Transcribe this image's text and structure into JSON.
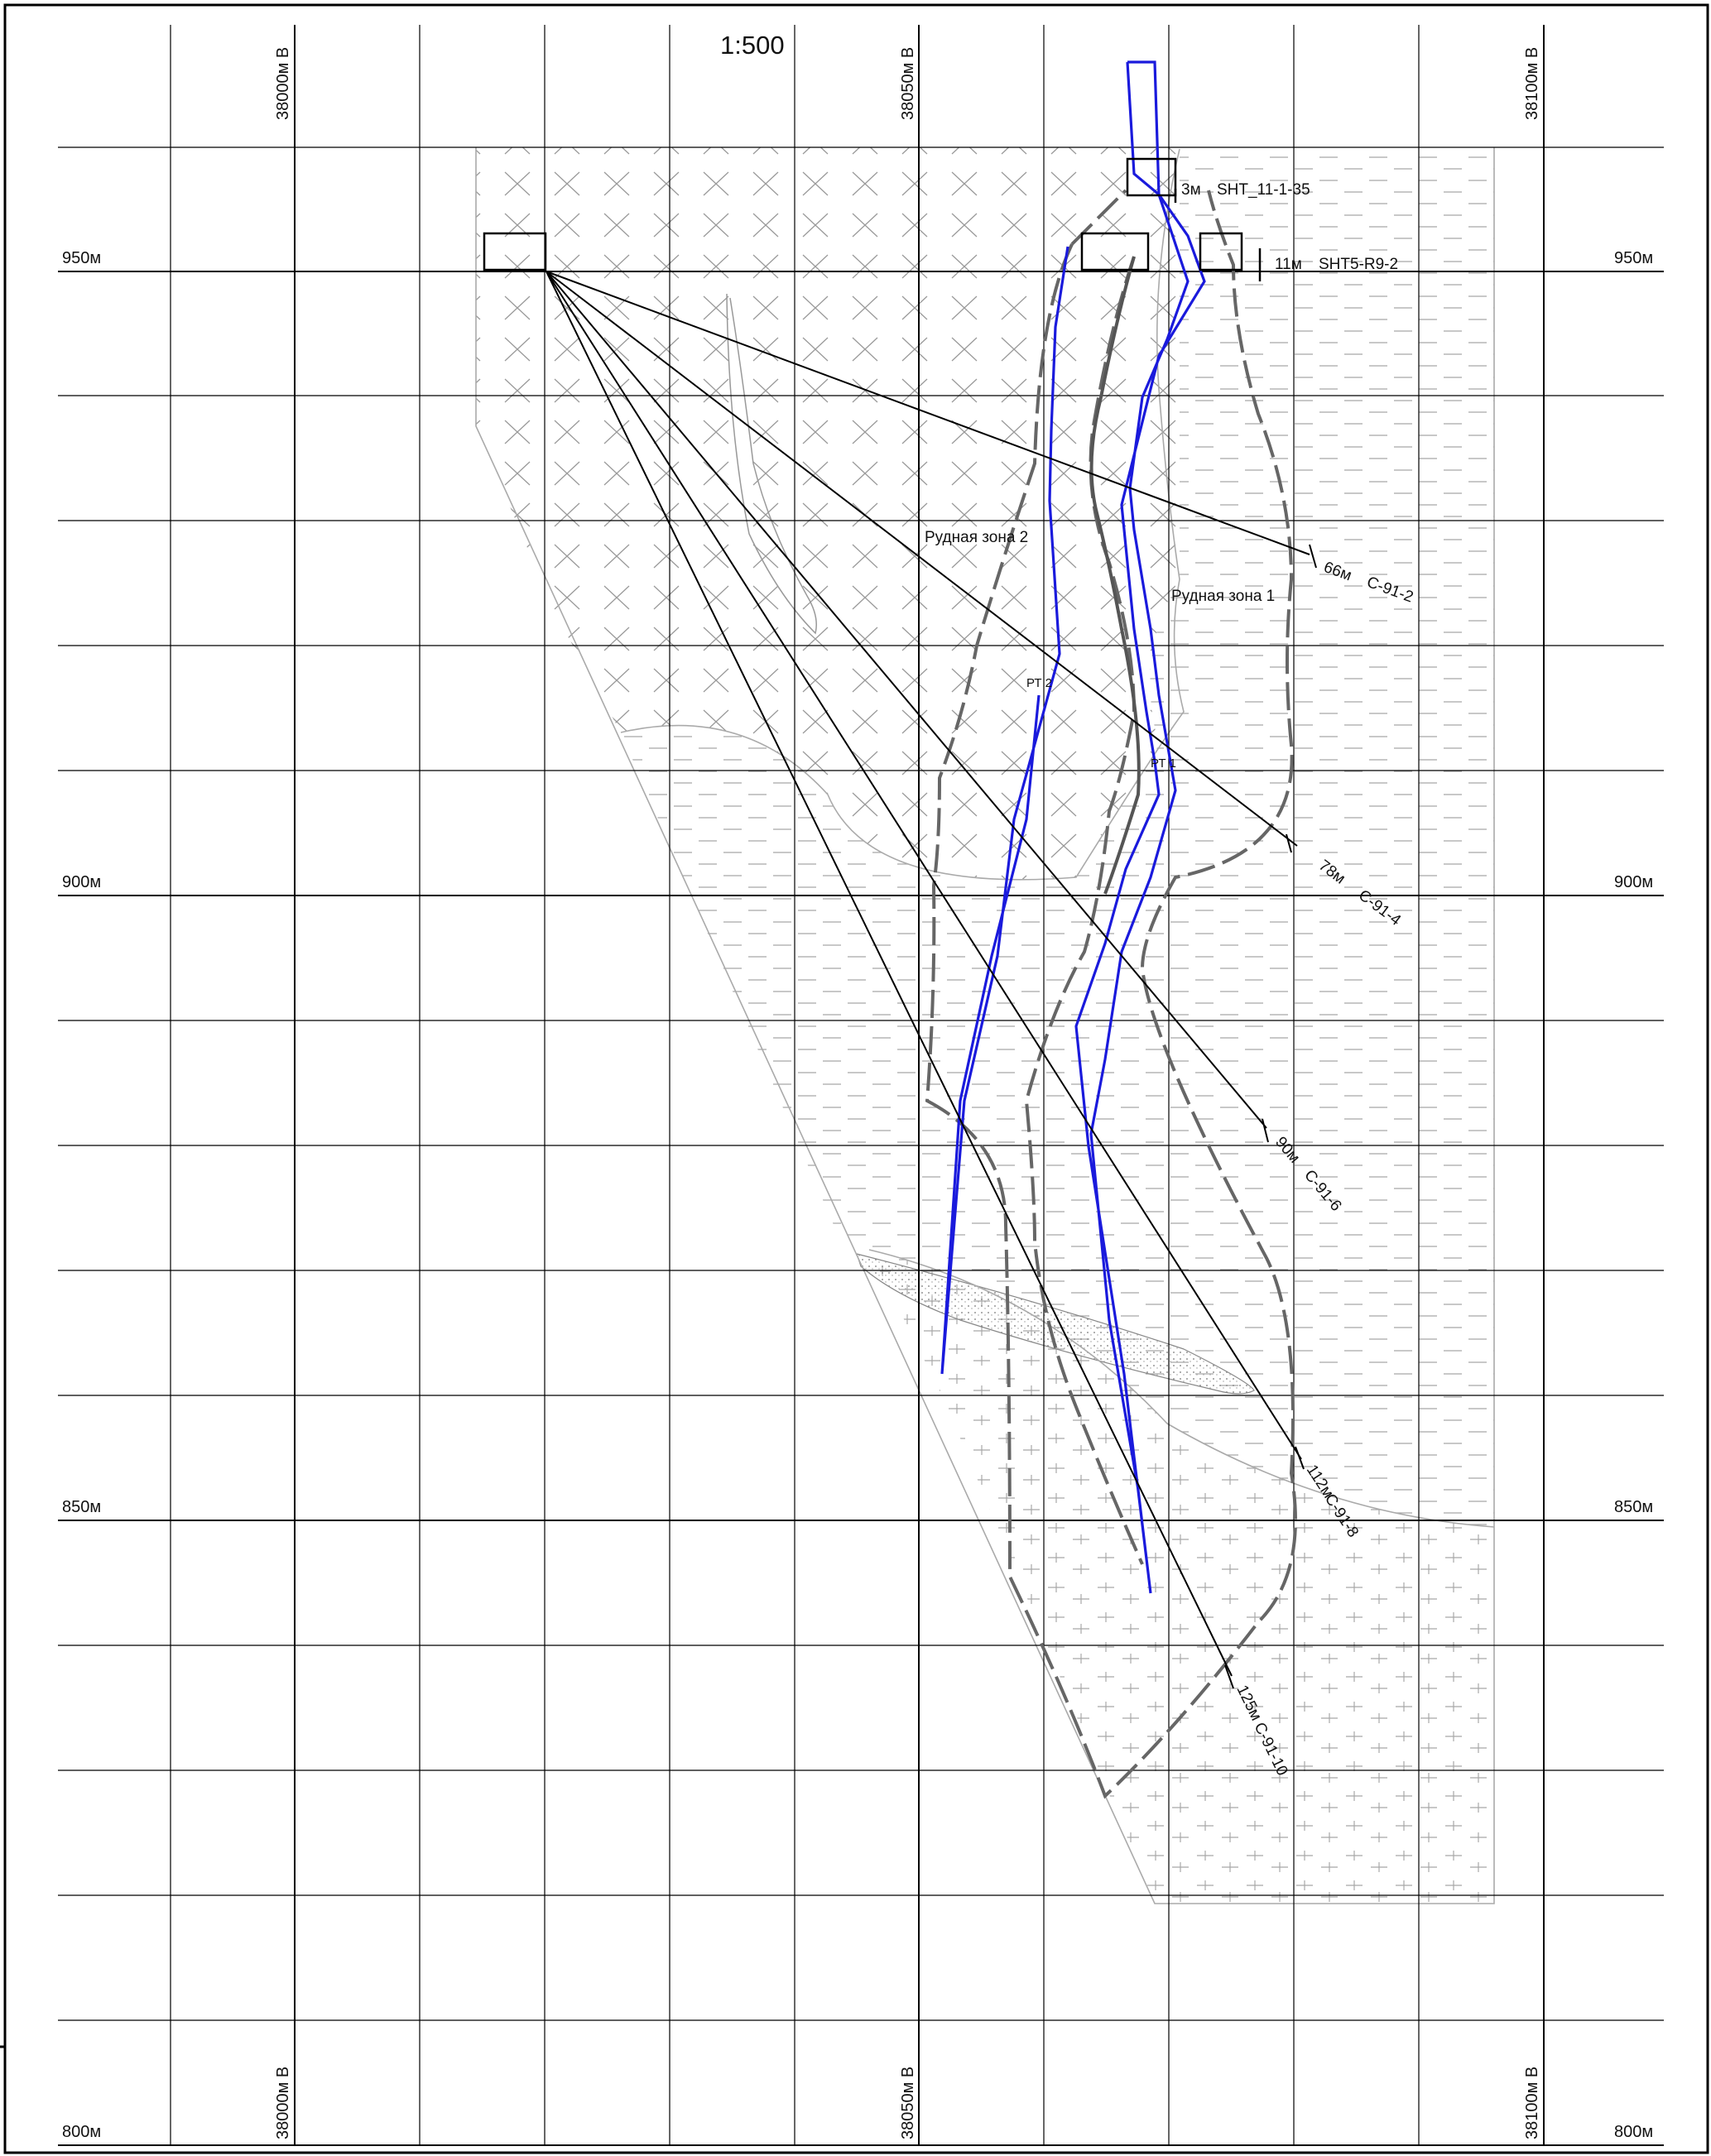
{
  "scale": "1:500",
  "easting_labels": [
    "38000м В",
    "38050м В",
    "38100м В"
  ],
  "elevation_labels": [
    "950м",
    "900м",
    "850м",
    "800м"
  ],
  "zones": {
    "zone1": "Рудная зона 1",
    "zone2": "Рудная зона 2"
  },
  "points": {
    "pt1": "РТ 1",
    "pt2": "РТ 2"
  },
  "workings": [
    {
      "length": "3м",
      "name": "SHT_11-1-35"
    },
    {
      "length": "11м",
      "name": "SHT5-R9-2"
    }
  ],
  "boreholes": [
    {
      "length": "66м",
      "name": "С-91-2"
    },
    {
      "length": "78м",
      "name": "С-91-4"
    },
    {
      "length": "90м",
      "name": "С-91-6"
    },
    {
      "length": "112м",
      "name": "С-91-8"
    },
    {
      "length": "125м",
      "name": "С-91-10"
    }
  ],
  "colors": {
    "ore_contour": "#1a1adc",
    "zone_boundary": "#666666",
    "grid": "#000000",
    "lithology": "#aaaaaa"
  }
}
